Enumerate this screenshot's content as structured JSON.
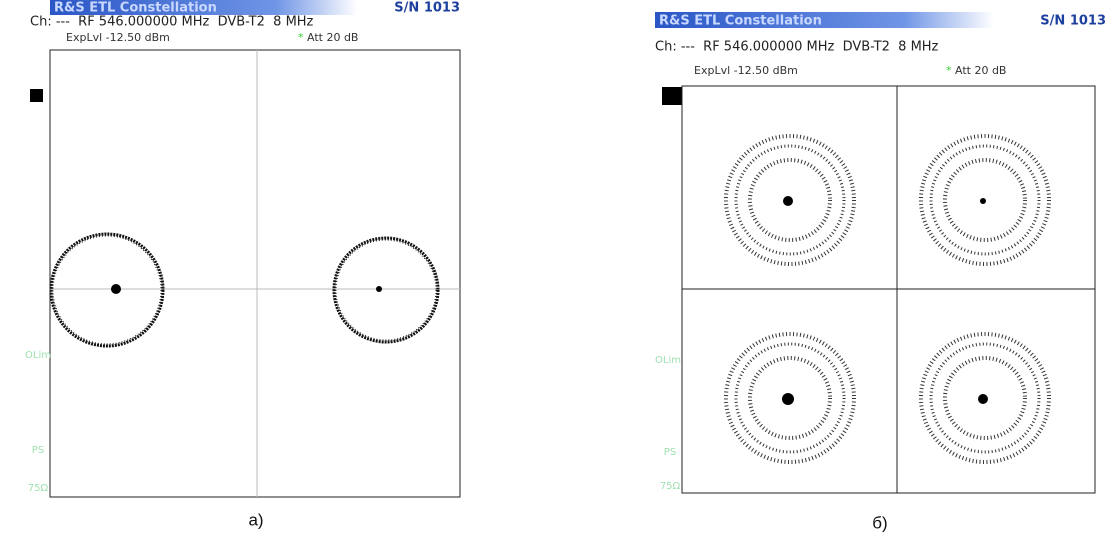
{
  "panels": [
    {
      "header": {
        "title": "R&S ETL Constellation",
        "serial": "S/N 1013"
      },
      "channel_line": "Ch: ---  RF 546.000000 MHz  DVB-T2  8 MHz",
      "exp_level": "ExpLvl -12.50 dBm",
      "att_marker": "*",
      "attenuation": "Att 20 dB",
      "side_labels": [
        "OLim",
        "PS",
        "75Ω"
      ],
      "caption": "а)"
    },
    {
      "header": {
        "title": "R&S ETL Constellation",
        "serial": "S/N 1013"
      },
      "channel_line": "Ch: ---  RF 546.000000 MHz  DVB-T2  8 MHz",
      "exp_level": "ExpLvl -12.50 dBm",
      "att_marker": "*",
      "attenuation": "Att 20 dB",
      "side_labels": [
        "OLim",
        "PS",
        "75Ω"
      ],
      "caption": "б)"
    }
  ]
}
